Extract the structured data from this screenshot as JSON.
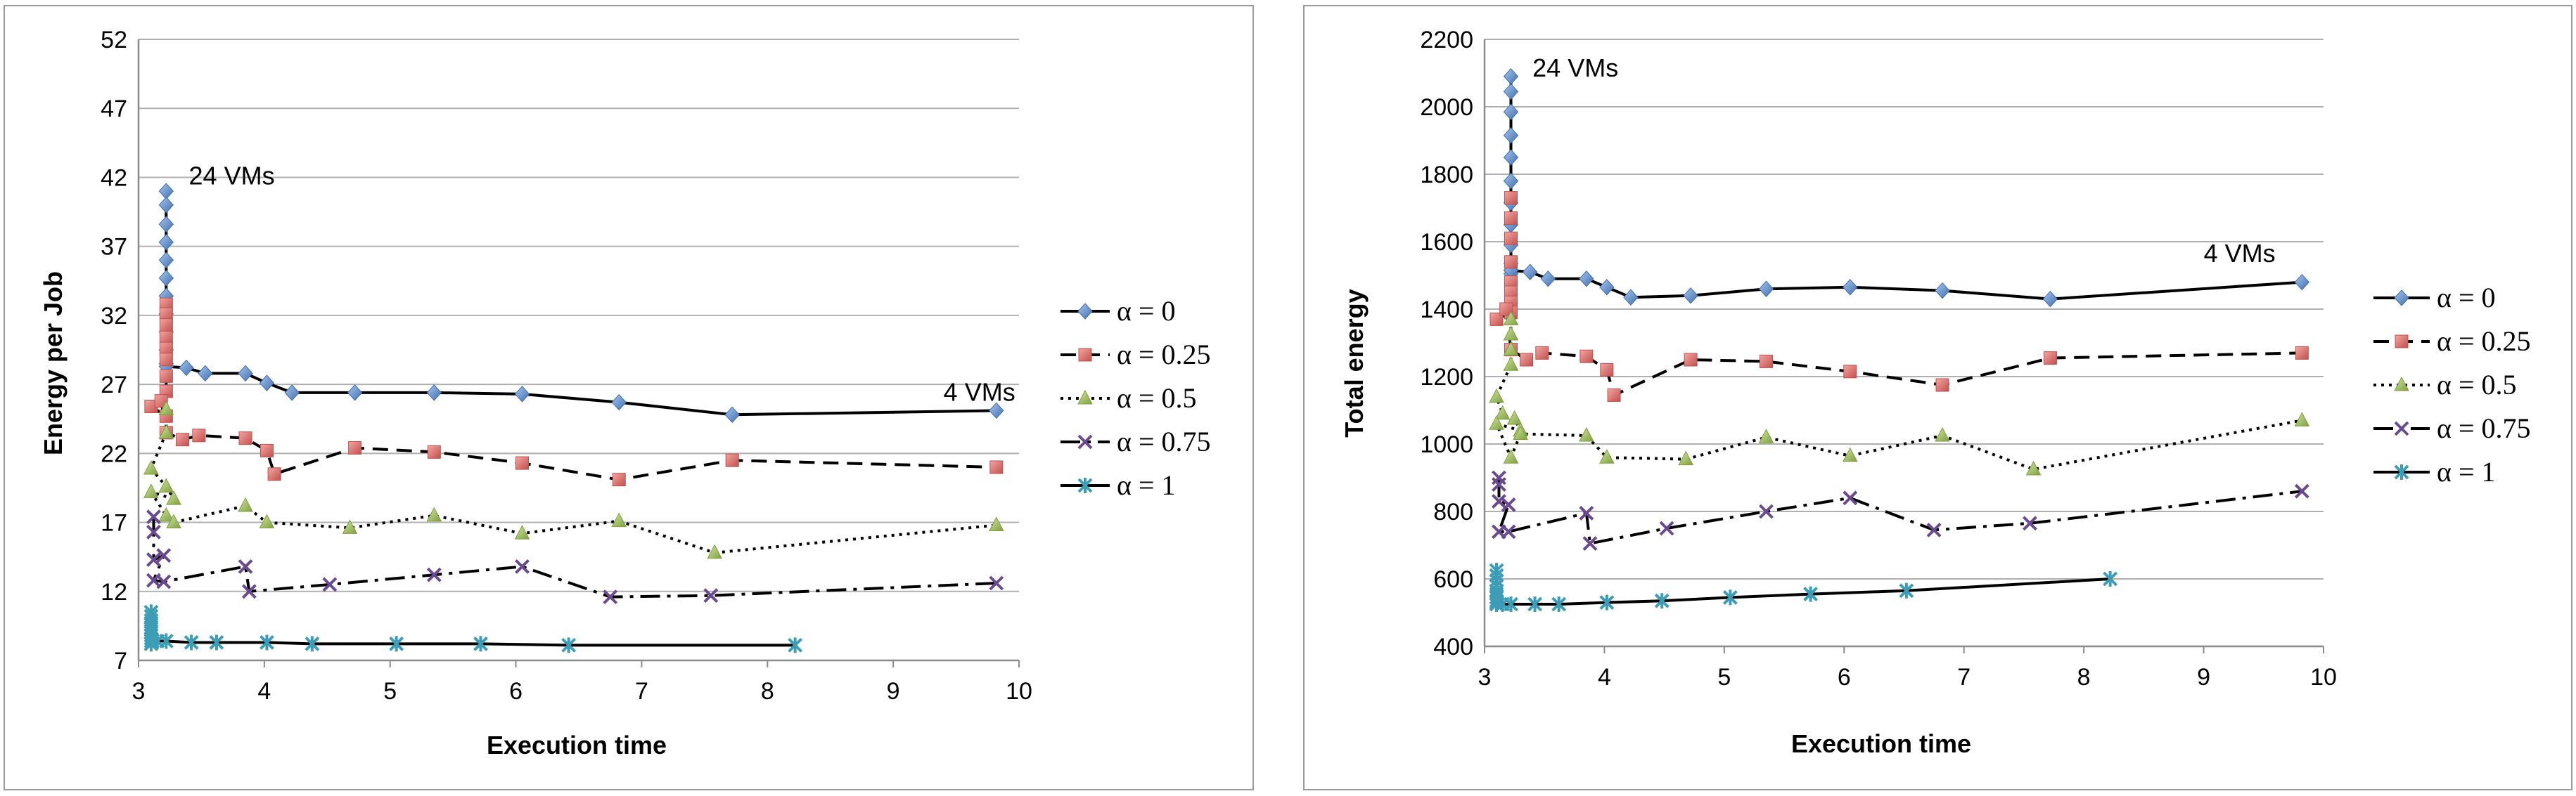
{
  "chart_data": [
    {
      "type": "line",
      "xlabel": "Execution time",
      "ylabel": "Energy per Job",
      "xlim": [
        3,
        10
      ],
      "ylim": [
        7,
        52
      ],
      "xticks": [
        3,
        4,
        5,
        6,
        7,
        8,
        9,
        10
      ],
      "yticks": [
        7,
        12,
        17,
        22,
        27,
        32,
        37,
        42,
        47,
        52
      ],
      "grid": "horizontal",
      "legend": "right",
      "annotations": [
        {
          "text": "24 VMs",
          "x": 3.4,
          "y": 41.5
        },
        {
          "text": "4 VMs",
          "x": 9.4,
          "y": 25.8
        }
      ],
      "series": [
        {
          "name": "α = 0",
          "color": "#4f81bd",
          "marker": "diamond",
          "dash": "solid",
          "x": [
            3.22,
            3.22,
            3.22,
            3.22,
            3.22,
            3.22,
            3.22,
            3.22,
            3.22,
            3.22,
            3.22,
            3.22,
            3.38,
            3.53,
            3.85,
            4.02,
            4.22,
            4.72,
            5.35,
            6.05,
            6.82,
            7.72,
            9.82
          ],
          "y": [
            41,
            40,
            38.6,
            37.3,
            36,
            34.7,
            33.4,
            32.1,
            30.8,
            29.5,
            28.5,
            28.3,
            28.2,
            27.8,
            27.8,
            27.1,
            26.4,
            26.4,
            26.4,
            26.3,
            25.7,
            24.8,
            25.1
          ]
        },
        {
          "name": "α = 0.25",
          "color": "#e06666",
          "marker": "square",
          "dash": "dashed",
          "x": [
            3.22,
            3.22,
            3.22,
            3.22,
            3.22,
            3.22,
            3.22,
            3.22,
            3.22,
            3.1,
            3.18,
            3.22,
            3.35,
            3.48,
            3.85,
            4.02,
            4.08,
            4.72,
            5.35,
            6.05,
            6.82,
            7.72,
            9.82
          ],
          "y": [
            32.8,
            32.1,
            31.3,
            30.4,
            29.6,
            28.8,
            27.6,
            26.5,
            24.7,
            25.4,
            25.8,
            23.5,
            23,
            23.3,
            23.1,
            22.2,
            20.5,
            22.4,
            22.1,
            21.3,
            20.1,
            21.5,
            21
          ]
        },
        {
          "name": "α = 0.5",
          "color": "#9bbb59",
          "marker": "triangle",
          "dash": "dotted",
          "x": [
            3.22,
            3.22,
            3.1,
            3.22,
            3.28,
            3.1,
            3.22,
            3.28,
            3.85,
            4.02,
            4.68,
            5.35,
            6.05,
            6.82,
            7.58,
            9.82
          ],
          "y": [
            25.2,
            23.5,
            20.9,
            19.6,
            18.7,
            19.2,
            17.5,
            17,
            18.2,
            17,
            16.6,
            17.5,
            16.2,
            17.1,
            14.8,
            16.8
          ]
        },
        {
          "name": "α = 0.75",
          "color": "#7f52a0",
          "marker": "cross",
          "dash": "dashdot",
          "x": [
            3.12,
            3.12,
            3.12,
            3.2,
            3.12,
            3.2,
            3.85,
            3.88,
            4.52,
            5.35,
            6.05,
            6.75,
            7.55,
            9.82
          ],
          "y": [
            17.4,
            16.3,
            14.3,
            14.6,
            12.8,
            12.7,
            13.8,
            12,
            12.5,
            13.2,
            13.8,
            11.6,
            11.7,
            12.6
          ]
        },
        {
          "name": "α = 1",
          "color": "#4bacc6",
          "marker": "star",
          "dash": "solid",
          "x": [
            3.1,
            3.1,
            3.1,
            3.1,
            3.1,
            3.1,
            3.1,
            3.1,
            3.1,
            3.1,
            3.15,
            3.22,
            3.42,
            3.62,
            4.02,
            4.38,
            5.05,
            5.72,
            6.42,
            8.22
          ],
          "y": [
            10.5,
            10.2,
            9.9,
            9.6,
            9.3,
            9,
            8.8,
            8.6,
            8.4,
            8.2,
            8.4,
            8.4,
            8.3,
            8.3,
            8.3,
            8.2,
            8.2,
            8.2,
            8.1,
            8.1
          ]
        }
      ]
    },
    {
      "type": "line",
      "xlabel": "Execution time",
      "ylabel": "Total energy",
      "xlim": [
        3,
        10
      ],
      "ylim": [
        400,
        2200
      ],
      "xticks": [
        3,
        4,
        5,
        6,
        7,
        8,
        9,
        10
      ],
      "yticks": [
        400,
        600,
        800,
        1000,
        1200,
        1400,
        1600,
        1800,
        2000,
        2200
      ],
      "grid": "horizontal",
      "legend": "right",
      "annotations": [
        {
          "text": "24 VMs",
          "x": 3.4,
          "y": 2090
        },
        {
          "text": "4 VMs",
          "x": 9.0,
          "y": 1540
        }
      ],
      "series": [
        {
          "name": "α = 0",
          "color": "#4f81bd",
          "marker": "diamond",
          "dash": "solid",
          "x": [
            3.22,
            3.22,
            3.22,
            3.22,
            3.22,
            3.22,
            3.22,
            3.22,
            3.22,
            3.22,
            3.22,
            3.22,
            3.22,
            3.38,
            3.53,
            3.85,
            4.02,
            4.22,
            4.72,
            5.35,
            6.05,
            6.82,
            7.72,
            9.82
          ],
          "y": [
            2090,
            2045,
            1985,
            1915,
            1850,
            1780,
            1715,
            1650,
            1590,
            1535,
            1515,
            1505,
            1515,
            1510,
            1490,
            1490,
            1465,
            1435,
            1440,
            1460,
            1465,
            1455,
            1430,
            1480
          ]
        },
        {
          "name": "α = 0.25",
          "color": "#e06666",
          "marker": "square",
          "dash": "dashed",
          "x": [
            3.22,
            3.22,
            3.22,
            3.22,
            3.22,
            3.22,
            3.22,
            3.22,
            3.1,
            3.18,
            3.22,
            3.35,
            3.48,
            3.85,
            4.02,
            4.08,
            4.72,
            5.35,
            6.05,
            6.82,
            7.72,
            9.82
          ],
          "y": [
            1730,
            1670,
            1610,
            1540,
            1480,
            1450,
            1420,
            1390,
            1370,
            1400,
            1280,
            1250,
            1270,
            1260,
            1220,
            1145,
            1250,
            1245,
            1215,
            1175,
            1255,
            1270
          ]
        },
        {
          "name": "α = 0.5",
          "color": "#9bbb59",
          "marker": "triangle",
          "dash": "dotted",
          "x": [
            3.22,
            3.22,
            3.22,
            3.22,
            3.1,
            3.15,
            3.25,
            3.3,
            3.1,
            3.22,
            3.3,
            3.85,
            4.02,
            4.68,
            5.35,
            6.05,
            6.82,
            7.58,
            9.82
          ],
          "y": [
            1370,
            1325,
            1280,
            1235,
            1140,
            1090,
            1075,
            1040,
            1060,
            960,
            1030,
            1025,
            960,
            955,
            1020,
            965,
            1025,
            925,
            1070
          ]
        },
        {
          "name": "α = 0.75",
          "color": "#7f52a0",
          "marker": "cross",
          "dash": "dashdot",
          "x": [
            3.12,
            3.12,
            3.12,
            3.2,
            3.12,
            3.2,
            3.85,
            3.88,
            4.52,
            5.35,
            6.05,
            6.75,
            7.55,
            9.82
          ],
          "y": [
            900,
            880,
            830,
            820,
            740,
            740,
            795,
            705,
            750,
            800,
            840,
            745,
            765,
            860
          ]
        },
        {
          "name": "α = 1",
          "color": "#4bacc6",
          "marker": "star",
          "dash": "solid",
          "x": [
            3.1,
            3.1,
            3.1,
            3.1,
            3.1,
            3.1,
            3.1,
            3.1,
            3.1,
            3.1,
            3.15,
            3.22,
            3.42,
            3.62,
            4.02,
            4.48,
            5.05,
            5.72,
            6.52,
            8.22
          ],
          "y": [
            625,
            610,
            595,
            580,
            565,
            555,
            545,
            535,
            530,
            525,
            525,
            525,
            525,
            525,
            530,
            535,
            545,
            555,
            565,
            600
          ]
        }
      ]
    }
  ]
}
